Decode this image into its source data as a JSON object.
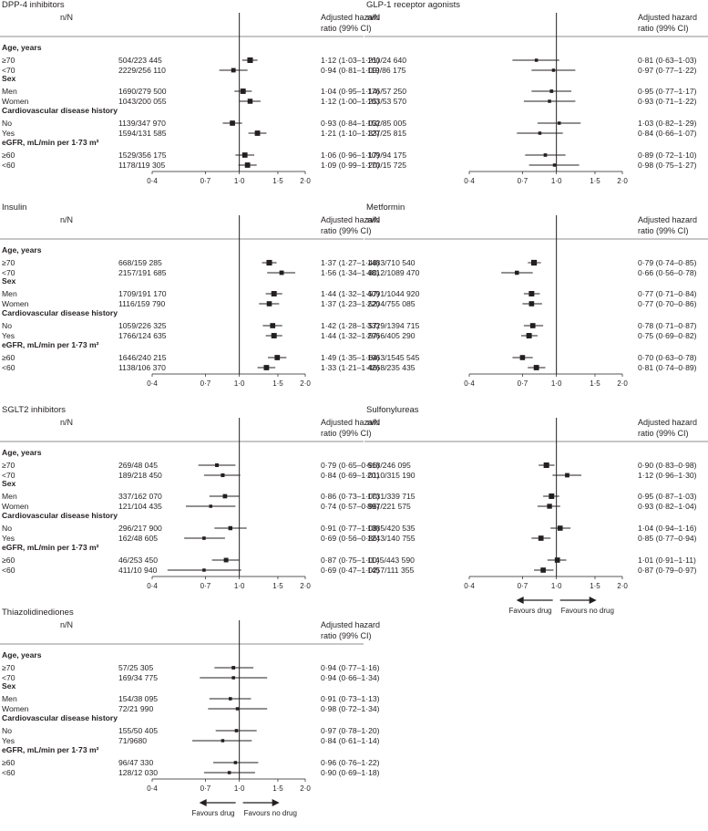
{
  "labels": {
    "nN": "n/N",
    "hr_header": [
      "Adjusted hazard",
      "ratio (99% CI)"
    ],
    "favours_drug": "Favours drug",
    "favours_no_drug": "Favours no drug"
  },
  "chart_data": [
    {
      "type": "forest",
      "title": "DPP-4 inhibitors",
      "xscale": "log",
      "xlim": [
        0.4,
        2.0
      ],
      "xticks": [
        "0·4",
        "0·7",
        "1·0",
        "1·5",
        "2·0"
      ],
      "reference_line": 1.0,
      "groups": [
        {
          "name": "Age, years",
          "rows": [
            {
              "label": "≥70",
              "nN": "504/223 445",
              "hr": 1.12,
              "lo": 1.03,
              "hi": 1.21,
              "hr_text": "1·12 (1·03–1·21)"
            },
            {
              "label": "<70",
              "nN": "2229/256 110",
              "hr": 0.94,
              "lo": 0.81,
              "hi": 1.09,
              "hr_text": "0·94 (0·81–1·09)"
            }
          ]
        },
        {
          "name": "Sex",
          "rows": [
            {
              "label": "Men",
              "nN": "1690/279 500",
              "hr": 1.04,
              "lo": 0.95,
              "hi": 1.14,
              "hr_text": "1·04 (0·95–1·14)"
            },
            {
              "label": "Women",
              "nN": "1043/200 055",
              "hr": 1.12,
              "lo": 1.0,
              "hi": 1.25,
              "hr_text": "1·12 (1·00–1·25)"
            }
          ]
        },
        {
          "name": "Cardiovascular disease history",
          "rows": [
            {
              "label": "No",
              "nN": "1139/347 970",
              "hr": 0.93,
              "lo": 0.84,
              "hi": 1.03,
              "hr_text": "0·93 (0·84–1·03)"
            },
            {
              "label": "Yes",
              "nN": "1594/131 585",
              "hr": 1.21,
              "lo": 1.1,
              "hi": 1.33,
              "hr_text": "1·21 (1·10–1·33)"
            }
          ]
        },
        {
          "name": "eGFR, mL/min per 1·73 m²",
          "rows": [
            {
              "label": "≥60",
              "nN": "1529/356 175",
              "hr": 1.06,
              "lo": 0.96,
              "hi": 1.17,
              "hr_text": "1·06 (0·96–1·17)"
            },
            {
              "label": "<60",
              "nN": "1178/119 305",
              "hr": 1.09,
              "lo": 0.99,
              "hi": 1.2,
              "hr_text": "1·09 (0·99–1·20)"
            }
          ]
        }
      ]
    },
    {
      "type": "forest",
      "title": "GLP-1 receptor agonists",
      "xscale": "log",
      "xlim": [
        0.4,
        2.0
      ],
      "xticks": [
        "0·4",
        "0·7",
        "1·0",
        "1·5",
        "2·0"
      ],
      "reference_line": 1.0,
      "groups": [
        {
          "name": "",
          "rows": [
            {
              "label": "",
              "nN": "160/24 640",
              "hr": 0.81,
              "lo": 0.63,
              "hi": 1.03,
              "hr_text": "0·81 (0·63–1·03)"
            },
            {
              "label": "",
              "nN": "119/86 175",
              "hr": 0.97,
              "lo": 0.77,
              "hi": 1.22,
              "hr_text": "0·97 (0·77–1·22)"
            }
          ]
        },
        {
          "name": "",
          "rows": [
            {
              "label": "",
              "nN": "176/57 250",
              "hr": 0.95,
              "lo": 0.77,
              "hi": 1.17,
              "hr_text": "0·95 (0·77–1·17)"
            },
            {
              "label": "",
              "nN": "103/53 570",
              "hr": 0.93,
              "lo": 0.71,
              "hi": 1.22,
              "hr_text": "0·93 (0·71–1·22)"
            }
          ]
        },
        {
          "name": "",
          "rows": [
            {
              "label": "",
              "nN": "152/85 005",
              "hr": 1.03,
              "lo": 0.82,
              "hi": 1.29,
              "hr_text": "1·03 (0·82–1·29)"
            },
            {
              "label": "",
              "nN": "127/25 815",
              "hr": 0.84,
              "lo": 0.66,
              "hi": 1.07,
              "hr_text": "0·84 (0·66–1·07)"
            }
          ]
        },
        {
          "name": "",
          "rows": [
            {
              "label": "",
              "nN": "109/94 175",
              "hr": 0.89,
              "lo": 0.72,
              "hi": 1.1,
              "hr_text": "0·89 (0·72–1·10)"
            },
            {
              "label": "",
              "nN": "170/15 725",
              "hr": 0.98,
              "lo": 0.75,
              "hi": 1.27,
              "hr_text": "0·98 (0·75–1·27)"
            }
          ]
        }
      ]
    },
    {
      "type": "forest",
      "title": "Insulin",
      "xscale": "log",
      "xlim": [
        0.4,
        2.0
      ],
      "xticks": [
        "0·4",
        "0·7",
        "1·0",
        "1·5",
        "2·0"
      ],
      "reference_line": 1.0,
      "groups": [
        {
          "name": "Age, years",
          "rows": [
            {
              "label": "≥70",
              "nN": "668/159 285",
              "hr": 1.37,
              "lo": 1.27,
              "hi": 1.48,
              "hr_text": "1·37 (1·27–1·48)"
            },
            {
              "label": "<70",
              "nN": "2157/191 685",
              "hr": 1.56,
              "lo": 1.34,
              "hi": 1.8,
              "hr_text": "1·56 (1·34–1·80)"
            }
          ]
        },
        {
          "name": "Sex",
          "rows": [
            {
              "label": "Men",
              "nN": "1709/191 170",
              "hr": 1.44,
              "lo": 1.32,
              "hi": 1.57,
              "hr_text": "1·44 (1·32–1·57)"
            },
            {
              "label": "Women",
              "nN": "1116/159 790",
              "hr": 1.37,
              "lo": 1.23,
              "hi": 1.52,
              "hr_text": "1·37 (1·23–1·52)"
            }
          ]
        },
        {
          "name": "Cardiovascular disease history",
          "rows": [
            {
              "label": "No",
              "nN": "1059/226 325",
              "hr": 1.42,
              "lo": 1.28,
              "hi": 1.57,
              "hr_text": "1·42 (1·28–1·57)"
            },
            {
              "label": "Yes",
              "nN": "1766/124 635",
              "hr": 1.44,
              "lo": 1.32,
              "hi": 1.57,
              "hr_text": "1·44 (1·32–1·57)"
            }
          ]
        },
        {
          "name": "eGFR, mL/min per 1·73 m²",
          "rows": [
            {
              "label": "≥60",
              "nN": "1646/240 215",
              "hr": 1.49,
              "lo": 1.35,
              "hi": 1.64,
              "hr_text": "1·49 (1·35–1·64)"
            },
            {
              "label": "<60",
              "nN": "1138/106 370",
              "hr": 1.33,
              "lo": 1.21,
              "hi": 1.46,
              "hr_text": "1·33 (1·21–1·46)"
            }
          ]
        }
      ]
    },
    {
      "type": "forest",
      "title": "Metformin",
      "xscale": "log",
      "xlim": [
        0.4,
        2.0
      ],
      "xticks": [
        "0·4",
        "0·7",
        "1·0",
        "1·5",
        "2·0"
      ],
      "reference_line": 1.0,
      "groups": [
        {
          "name": "",
          "rows": [
            {
              "label": "",
              "nN": "1483/710 540",
              "hr": 0.79,
              "lo": 0.74,
              "hi": 0.85,
              "hr_text": "0·79 (0·74–0·85)"
            },
            {
              "label": "",
              "nN": "4812/1089 470",
              "hr": 0.66,
              "lo": 0.56,
              "hi": 0.78,
              "hr_text": "0·66 (0·56–0·78)"
            }
          ]
        },
        {
          "name": "",
          "rows": [
            {
              "label": "",
              "nN": "4091/1044 920",
              "hr": 0.77,
              "lo": 0.71,
              "hi": 0.84,
              "hr_text": "0·77 (0·71–0·84)"
            },
            {
              "label": "",
              "nN": "2204/755 085",
              "hr": 0.77,
              "lo": 0.7,
              "hi": 0.86,
              "hr_text": "0·77 (0·70–0·86)"
            }
          ]
        },
        {
          "name": "",
          "rows": [
            {
              "label": "",
              "nN": "3329/1394 715",
              "hr": 0.78,
              "lo": 0.71,
              "hi": 0.87,
              "hr_text": "0·78 (0·71–0·87)"
            },
            {
              "label": "",
              "nN": "2966/405 290",
              "hr": 0.75,
              "lo": 0.69,
              "hi": 0.82,
              "hr_text": "0·75 (0·69–0·82)"
            }
          ]
        },
        {
          "name": "",
          "rows": [
            {
              "label": "",
              "nN": "1963/1545 545",
              "hr": 0.7,
              "lo": 0.63,
              "hi": 0.78,
              "hr_text": "0·70 (0·63–0·78)"
            },
            {
              "label": "",
              "nN": "4268/235 435",
              "hr": 0.81,
              "lo": 0.74,
              "hi": 0.89,
              "hr_text": "0·81 (0·74–0·89)"
            }
          ]
        }
      ]
    },
    {
      "type": "forest",
      "title": "SGLT2 inhibitors",
      "xscale": "log",
      "xlim": [
        0.4,
        2.0
      ],
      "xticks": [
        "0·4",
        "0·7",
        "1·0",
        "1·5",
        "2·0"
      ],
      "reference_line": 1.0,
      "groups": [
        {
          "name": "Age, years",
          "rows": [
            {
              "label": "≥70",
              "nN": "269/48 045",
              "hr": 0.79,
              "lo": 0.65,
              "hi": 0.96,
              "hr_text": "0·79 (0·65–0·96)"
            },
            {
              "label": "<70",
              "nN": "189/218 450",
              "hr": 0.84,
              "lo": 0.69,
              "hi": 1.01,
              "hr_text": "0·84 (0·69–1·01)"
            }
          ]
        },
        {
          "name": "Sex",
          "rows": [
            {
              "label": "Men",
              "nN": "337/162 070",
              "hr": 0.86,
              "lo": 0.73,
              "hi": 1.0,
              "hr_text": "0·86 (0·73–1·00)"
            },
            {
              "label": "Women",
              "nN": "121/104 435",
              "hr": 0.74,
              "lo": 0.57,
              "hi": 0.96,
              "hr_text": "0·74 (0·57–0·96)"
            }
          ]
        },
        {
          "name": "Cardiovascular disease history",
          "rows": [
            {
              "label": "No",
              "nN": "296/217 900",
              "hr": 0.91,
              "lo": 0.77,
              "hi": 1.08,
              "hr_text": "0·91 (0·77–1·08)"
            },
            {
              "label": "Yes",
              "nN": "162/48 605",
              "hr": 0.69,
              "lo": 0.56,
              "hi": 0.86,
              "hr_text": "0·69 (0·56–0·86)"
            }
          ]
        },
        {
          "name": "eGFR, mL/min per 1·73 m²",
          "rows": [
            {
              "label": "≥60",
              "nN": "46/253 450",
              "hr": 0.87,
              "lo": 0.75,
              "hi": 1.0,
              "hr_text": "0·87 (0·75–1·00)"
            },
            {
              "label": "<60",
              "nN": "411/10 940",
              "hr": 0.69,
              "lo": 0.47,
              "hi": 1.02,
              "hr_text": "0·69 (0·47–1·02)"
            }
          ]
        }
      ]
    },
    {
      "type": "forest",
      "title": "Sulfonylureas",
      "xscale": "log",
      "xlim": [
        0.4,
        2.0
      ],
      "xticks": [
        "0·4",
        "0·7",
        "1·0",
        "1·5",
        "2·0"
      ],
      "reference_line": 1.0,
      "favours": true,
      "groups": [
        {
          "name": "",
          "rows": [
            {
              "label": "",
              "nN": "618/246 095",
              "hr": 0.9,
              "lo": 0.83,
              "hi": 0.98,
              "hr_text": "0·90 (0·83–0·98)"
            },
            {
              "label": "",
              "nN": "2010/315 190",
              "hr": 1.12,
              "lo": 0.96,
              "hi": 1.3,
              "hr_text": "1·12 (0·96–1·30)"
            }
          ]
        },
        {
          "name": "",
          "rows": [
            {
              "label": "",
              "nN": "1731/339 715",
              "hr": 0.95,
              "lo": 0.87,
              "hi": 1.03,
              "hr_text": "0·95 (0·87–1·03)"
            },
            {
              "label": "",
              "nN": "897/221 575",
              "hr": 0.93,
              "lo": 0.82,
              "hi": 1.04,
              "hr_text": "0·93 (0·82–1·04)"
            }
          ]
        },
        {
          "name": "",
          "rows": [
            {
              "label": "",
              "nN": "1385/420 535",
              "hr": 1.04,
              "lo": 0.94,
              "hi": 1.16,
              "hr_text": "1·04 (0·94–1·16)"
            },
            {
              "label": "",
              "nN": "1243/140 755",
              "hr": 0.85,
              "lo": 0.77,
              "hi": 0.94,
              "hr_text": "0·85 (0·77–0·94)"
            }
          ]
        },
        {
          "name": "",
          "rows": [
            {
              "label": "",
              "nN": "1145/443 590",
              "hr": 1.01,
              "lo": 0.91,
              "hi": 1.11,
              "hr_text": "1·01 (0·91–1·11)"
            },
            {
              "label": "",
              "nN": "1457/111 355",
              "hr": 0.87,
              "lo": 0.79,
              "hi": 0.97,
              "hr_text": "0·87 (0·79–0·97)"
            }
          ]
        }
      ]
    },
    {
      "type": "forest",
      "title": "Thiazolidinediones",
      "xscale": "log",
      "xlim": [
        0.4,
        2.0
      ],
      "xticks": [
        "0·4",
        "0·7",
        "1·0",
        "1·5",
        "2·0"
      ],
      "reference_line": 1.0,
      "favours": true,
      "groups": [
        {
          "name": "Age, years",
          "rows": [
            {
              "label": "≥70",
              "nN": "57/25 305",
              "hr": 0.94,
              "lo": 0.77,
              "hi": 1.16,
              "hr_text": "0·94 (0·77–1·16)"
            },
            {
              "label": "<70",
              "nN": "169/34 775",
              "hr": 0.94,
              "lo": 0.66,
              "hi": 1.34,
              "hr_text": "0·94 (0·66–1·34)"
            }
          ]
        },
        {
          "name": "Sex",
          "rows": [
            {
              "label": "Men",
              "nN": "154/38 095",
              "hr": 0.91,
              "lo": 0.73,
              "hi": 1.13,
              "hr_text": "0·91 (0·73–1·13)"
            },
            {
              "label": "Women",
              "nN": "72/21 990",
              "hr": 0.98,
              "lo": 0.72,
              "hi": 1.34,
              "hr_text": "0·98 (0·72–1·34)"
            }
          ]
        },
        {
          "name": "Cardiovascular disease history",
          "rows": [
            {
              "label": "No",
              "nN": "155/50 405",
              "hr": 0.97,
              "lo": 0.78,
              "hi": 1.2,
              "hr_text": "0·97 (0·78–1·20)"
            },
            {
              "label": "Yes",
              "nN": "71/9680",
              "hr": 0.84,
              "lo": 0.61,
              "hi": 1.14,
              "hr_text": "0·84 (0·61–1·14)"
            }
          ]
        },
        {
          "name": "eGFR, mL/min per 1·73 m²",
          "rows": [
            {
              "label": "≥60",
              "nN": "96/47 330",
              "hr": 0.96,
              "lo": 0.76,
              "hi": 1.22,
              "hr_text": "0·96 (0·76–1·22)"
            },
            {
              "label": "<60",
              "nN": "128/12 030",
              "hr": 0.9,
              "lo": 0.69,
              "hi": 1.18,
              "hr_text": "0·90 (0·69–1·18)"
            }
          ]
        }
      ]
    }
  ]
}
